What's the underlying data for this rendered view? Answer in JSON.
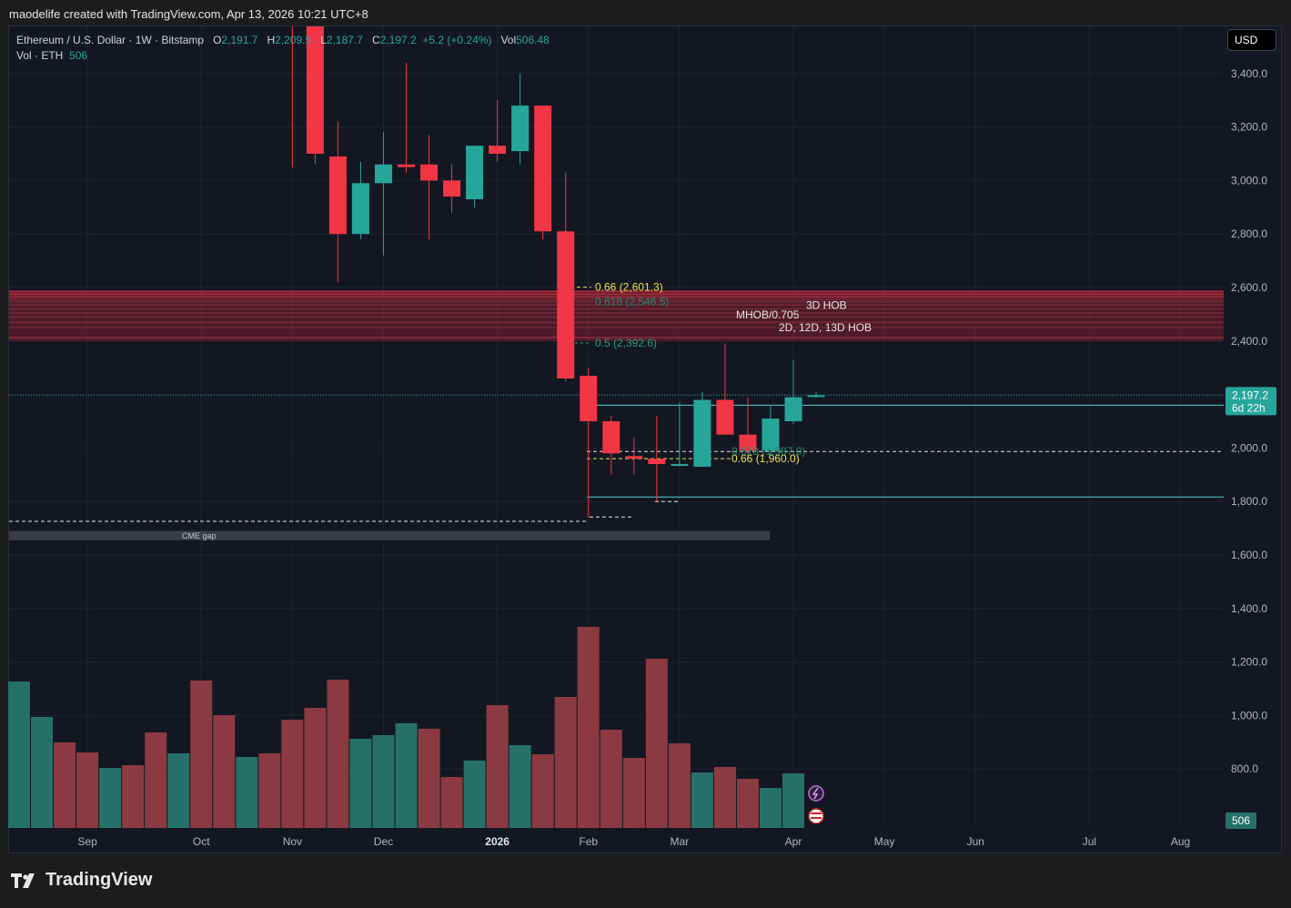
{
  "header": {
    "text": "maodelife created with TradingView.com, Apr 13, 2026 10:21 UTC+8"
  },
  "legend": {
    "symbol": "Ethereum / U.S. Dollar · 1W · Bitstamp",
    "o_label": "O",
    "o": "2,191.7",
    "h_label": "H",
    "h": "2,209.5",
    "l_label": "L",
    "l": "2,187.7",
    "c_label": "C",
    "c": "2,197.2",
    "change": "+5.2 (+0.24%)",
    "vol_label": "Vol",
    "vol": "506.48",
    "vol2_label": "Vol · ETH",
    "vol2": "506"
  },
  "currency_button": "USD",
  "footer": {
    "brand": "TradingView"
  },
  "chart_data": {
    "type": "candlestick",
    "symbol": "Ethereum / U.S. Dollar",
    "timeframe": "1W",
    "exchange": "Bitstamp",
    "y_ticks": [
      "3,400.0",
      "3,200.0",
      "3,000.0",
      "2,800.0",
      "2,600.0",
      "2,400.0",
      "2,200.0",
      "2,000.0",
      "1,800.0",
      "1,600.0",
      "1,400.0",
      "1,200.0",
      "1,000.0",
      "800.0"
    ],
    "ylim": [
      790,
      3580
    ],
    "x_labels": [
      {
        "label": "Sep",
        "i": 3
      },
      {
        "label": "Oct",
        "i": 8
      },
      {
        "label": "Nov",
        "i": 12
      },
      {
        "label": "Dec",
        "i": 16
      },
      {
        "label": "2026",
        "i": 21,
        "bold": true
      },
      {
        "label": "Feb",
        "i": 25
      },
      {
        "label": "Mar",
        "i": 29
      },
      {
        "label": "Apr",
        "i": 34
      },
      {
        "label": "May",
        "i": 38
      },
      {
        "label": "Jun",
        "i": 42
      },
      {
        "label": "Jul",
        "i": 47
      },
      {
        "label": "Aug",
        "i": 51
      }
    ],
    "candles": [
      {
        "i": 12,
        "o": 4060,
        "h": 4680,
        "l": 3050,
        "c": 4000
      },
      {
        "i": 13,
        "o": 4280,
        "h": 4360,
        "l": 3060,
        "c": 3100
      },
      {
        "i": 14,
        "o": 3090,
        "h": 3220,
        "l": 2620,
        "c": 2800
      },
      {
        "i": 15,
        "o": 2800,
        "h": 3070,
        "l": 2780,
        "c": 2990
      },
      {
        "i": 16,
        "o": 2990,
        "h": 3180,
        "l": 2720,
        "c": 3060
      },
      {
        "i": 17,
        "o": 3060,
        "h": 3440,
        "l": 3030,
        "c": 3050
      },
      {
        "i": 18,
        "o": 3060,
        "h": 3170,
        "l": 2780,
        "c": 3000
      },
      {
        "i": 19,
        "o": 3000,
        "h": 3060,
        "l": 2880,
        "c": 2940
      },
      {
        "i": 20,
        "o": 2930,
        "h": 3120,
        "l": 2900,
        "c": 3130
      },
      {
        "i": 21,
        "o": 3130,
        "h": 3300,
        "l": 3070,
        "c": 3100
      },
      {
        "i": 22,
        "o": 3110,
        "h": 3400,
        "l": 3060,
        "c": 3280
      },
      {
        "i": 23,
        "o": 3280,
        "h": 3280,
        "l": 2780,
        "c": 2810
      },
      {
        "i": 24,
        "o": 2810,
        "h": 3030,
        "l": 2250,
        "c": 2260
      },
      {
        "i": 25,
        "o": 2270,
        "h": 2300,
        "l": 1740,
        "c": 2100
      },
      {
        "i": 26,
        "o": 2100,
        "h": 2120,
        "l": 1900,
        "c": 1980
      },
      {
        "i": 27,
        "o": 1970,
        "h": 2040,
        "l": 1900,
        "c": 1960
      },
      {
        "i": 28,
        "o": 1960,
        "h": 2120,
        "l": 1800,
        "c": 1940
      },
      {
        "i": 29,
        "o": 1940,
        "h": 2170,
        "l": 1930,
        "c": 1940
      },
      {
        "i": 30,
        "o": 1930,
        "h": 2210,
        "l": 1930,
        "c": 2180
      },
      {
        "i": 31,
        "o": 2180,
        "h": 2390,
        "l": 2050,
        "c": 2050
      },
      {
        "i": 32,
        "o": 2050,
        "h": 2190,
        "l": 1960,
        "c": 1990
      },
      {
        "i": 33,
        "o": 1990,
        "h": 2160,
        "l": 1970,
        "c": 2110
      },
      {
        "i": 34,
        "o": 2100,
        "h": 2330,
        "l": 2090,
        "c": 2190
      },
      {
        "i": 35,
        "o": 2191.7,
        "h": 2209.5,
        "l": 2187.7,
        "c": 2197.2
      }
    ],
    "volume_bars": [
      {
        "i": 0,
        "h": 161,
        "up": true
      },
      {
        "i": 1,
        "h": 122,
        "up": true
      },
      {
        "i": 2,
        "h": 94,
        "up": false
      },
      {
        "i": 3,
        "h": 83,
        "up": false
      },
      {
        "i": 4,
        "h": 66,
        "up": true
      },
      {
        "i": 5,
        "h": 69,
        "up": false
      },
      {
        "i": 6,
        "h": 105,
        "up": false
      },
      {
        "i": 7,
        "h": 82,
        "up": true
      },
      {
        "i": 8,
        "h": 162,
        "up": false
      },
      {
        "i": 9,
        "h": 124,
        "up": false
      },
      {
        "i": 10,
        "h": 78,
        "up": true
      },
      {
        "i": 11,
        "h": 82,
        "up": false
      },
      {
        "i": 12,
        "h": 119,
        "up": false
      },
      {
        "i": 13,
        "h": 132,
        "up": false
      },
      {
        "i": 14,
        "h": 163,
        "up": false
      },
      {
        "i": 15,
        "h": 98,
        "up": true
      },
      {
        "i": 16,
        "h": 102,
        "up": true
      },
      {
        "i": 17,
        "h": 115,
        "up": true
      },
      {
        "i": 18,
        "h": 109,
        "up": false
      },
      {
        "i": 19,
        "h": 56,
        "up": false
      },
      {
        "i": 20,
        "h": 74,
        "up": true
      },
      {
        "i": 21,
        "h": 135,
        "up": false
      },
      {
        "i": 22,
        "h": 91,
        "up": true
      },
      {
        "i": 23,
        "h": 81,
        "up": false
      },
      {
        "i": 24,
        "h": 144,
        "up": false
      },
      {
        "i": 25,
        "h": 221,
        "up": false
      },
      {
        "i": 26,
        "h": 108,
        "up": false
      },
      {
        "i": 27,
        "h": 77,
        "up": false
      },
      {
        "i": 28,
        "h": 186,
        "up": false
      },
      {
        "i": 29,
        "h": 93,
        "up": false
      },
      {
        "i": 30,
        "h": 61,
        "up": true
      },
      {
        "i": 31,
        "h": 67,
        "up": false
      },
      {
        "i": 32,
        "h": 54,
        "up": false
      },
      {
        "i": 33,
        "h": 44,
        "up": true
      },
      {
        "i": 34,
        "h": 60,
        "up": true
      }
    ],
    "zones": [
      {
        "from": 2400,
        "to": 2590,
        "label": "MHOB/0.705"
      },
      {
        "from": 1655,
        "to": 1690,
        "label": "CME gap"
      }
    ],
    "annotations": [
      {
        "text": "0.66 (2,601.3)",
        "price": 2601.3,
        "color": "#f2e14c"
      },
      {
        "text": "0.618 (2,546.5)",
        "price": 2546.5,
        "color": "#1f8a70"
      },
      {
        "text": "3D HOB",
        "price": 2534,
        "color": "#e6e6e6"
      },
      {
        "text": "MHOB/0.705",
        "price": 2498,
        "color": "#e6e6e6"
      },
      {
        "text": "2D, 12D, 13D HOB",
        "price": 2451,
        "color": "#e6e6e6"
      },
      {
        "text": "0.5 (2,392.6)",
        "price": 2392.6,
        "color": "#2e9e6e"
      },
      {
        "text": "0.66 (1,960.0)",
        "price": 1960,
        "color": "#f2e14c"
      },
      {
        "text": "0.618 (1,987.0)",
        "price": 1987,
        "color": "#1f8a70"
      }
    ],
    "price_label": {
      "value": "2,197.2",
      "countdown": "6d 22h"
    },
    "volume_label": "506"
  }
}
